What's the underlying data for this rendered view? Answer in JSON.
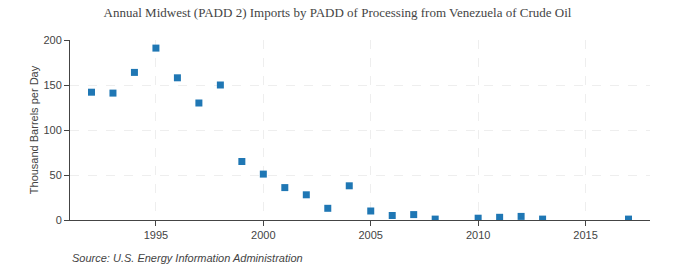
{
  "chart_data": {
    "type": "scatter",
    "title": "Annual Midwest (PADD 2) Imports by PADD of Processing from Venezuela of Crude Oil",
    "ylabel": "Thousand Barrels per Day",
    "annotations": [
      "Source: U.S. Energy Information Administration"
    ],
    "x": [
      1992,
      1993,
      1994,
      1995,
      1996,
      1997,
      1998,
      1999,
      2000,
      2001,
      2002,
      2003,
      2004,
      2005,
      2006,
      2007,
      2008,
      2010,
      2011,
      2012,
      2013,
      2017
    ],
    "values": [
      142,
      141,
      164,
      191,
      158,
      130,
      150,
      65,
      51,
      36,
      28,
      13,
      38,
      10,
      5,
      6,
      1,
      2,
      3,
      4,
      1,
      1
    ],
    "marker": "square",
    "xlim": [
      1991,
      2018
    ],
    "ylim": [
      0,
      200
    ],
    "xticks": [
      1995,
      2000,
      2005,
      2010,
      2015
    ],
    "yticks": [
      0,
      50,
      100,
      150,
      200
    ],
    "grid": true
  }
}
